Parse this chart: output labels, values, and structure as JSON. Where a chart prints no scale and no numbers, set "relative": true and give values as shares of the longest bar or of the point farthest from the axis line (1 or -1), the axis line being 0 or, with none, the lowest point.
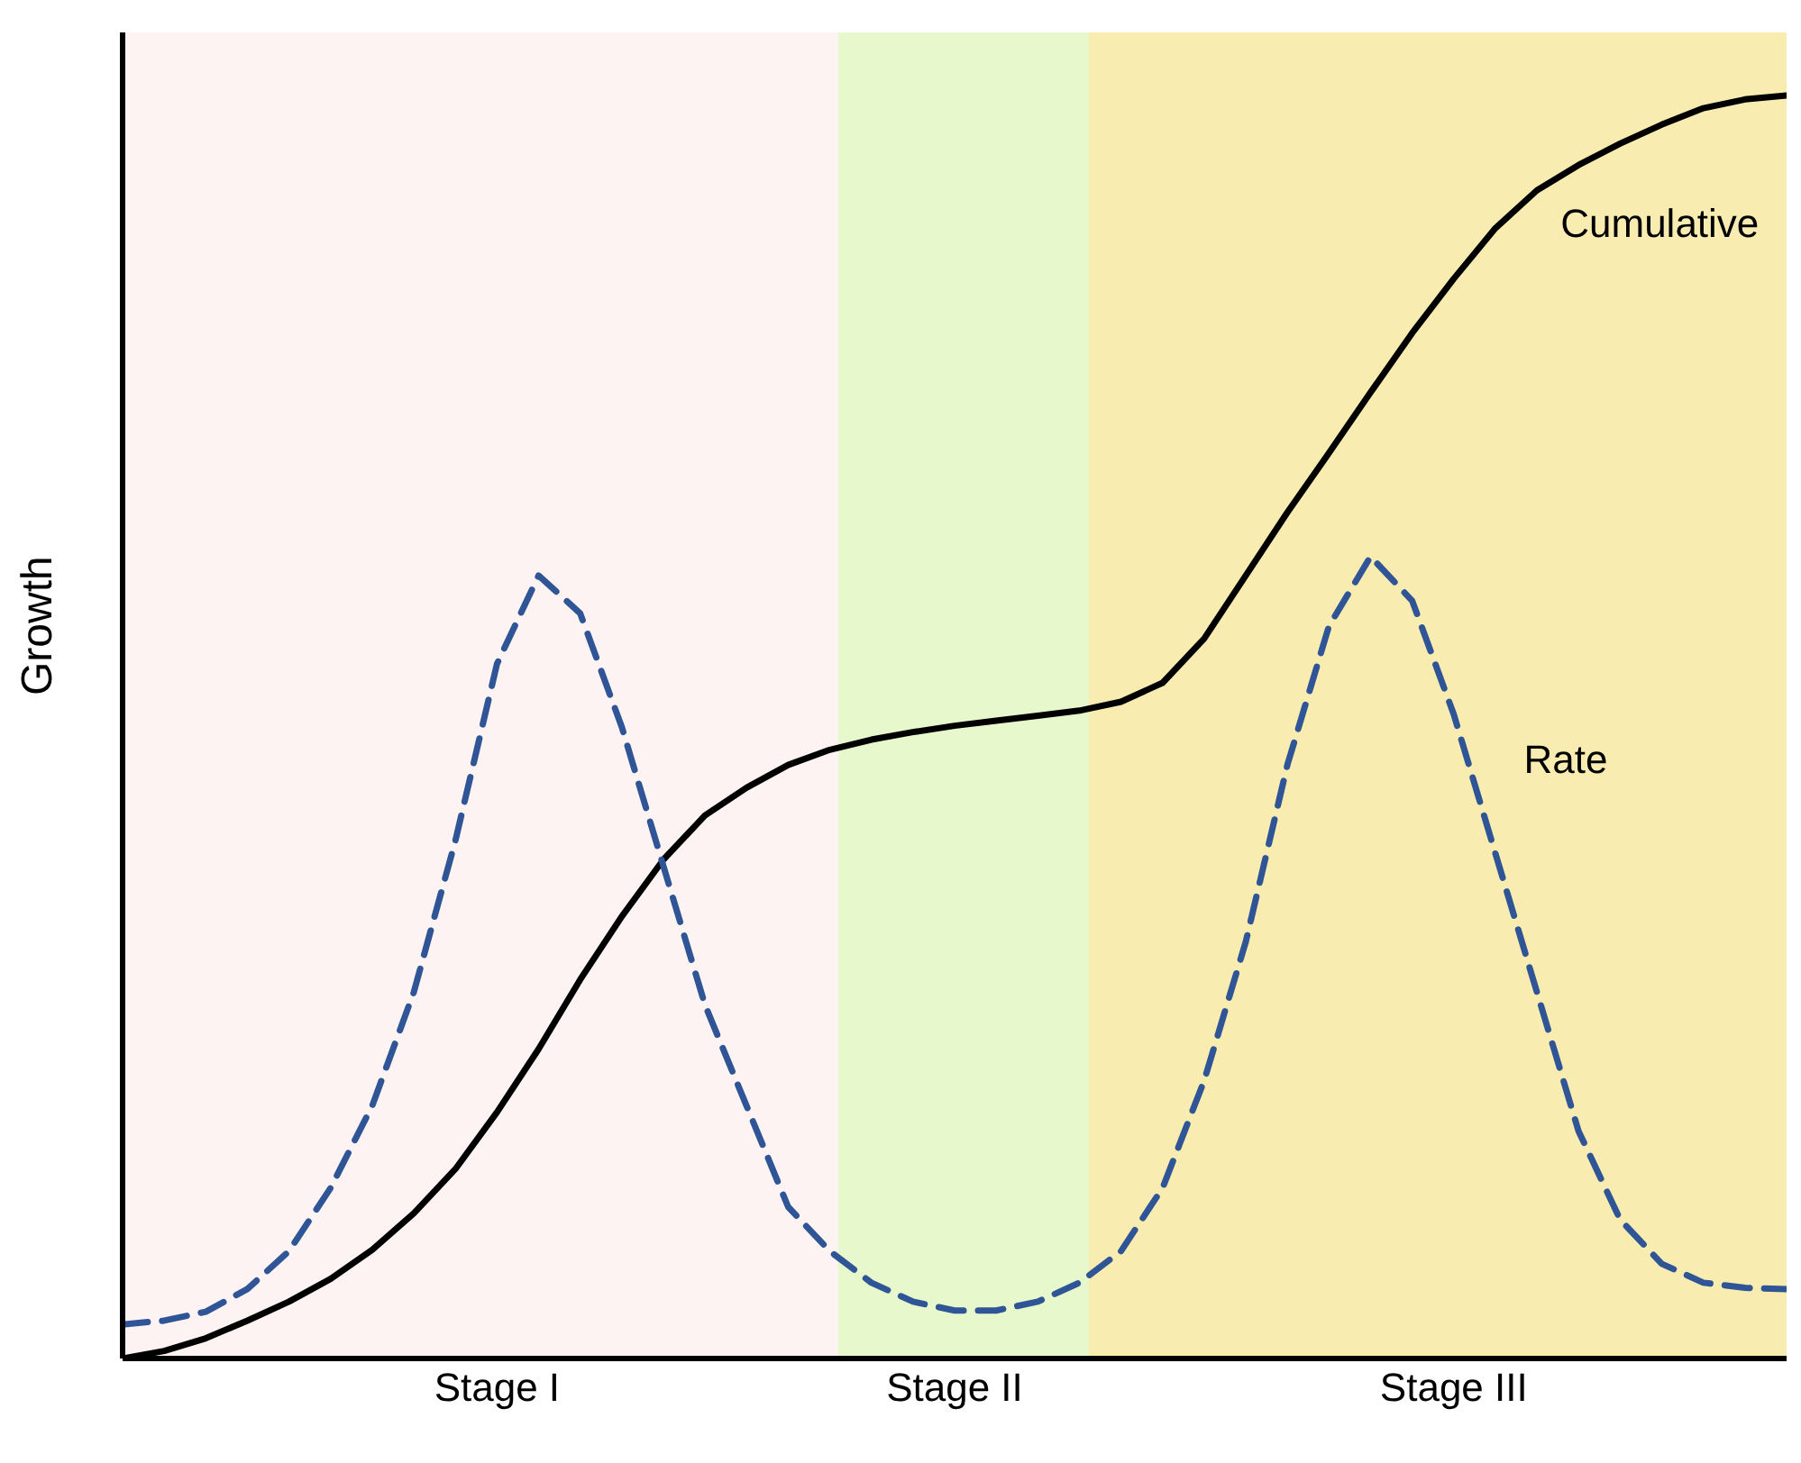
{
  "chart_data": {
    "type": "line",
    "ylabel": "Growth",
    "relative": true,
    "grid": false,
    "legend": false,
    "categories": [
      null,
      null,
      null,
      null,
      null,
      null,
      null,
      null,
      null,
      "Stage I",
      null,
      null,
      null,
      null,
      null,
      null,
      null,
      null,
      null,
      null,
      "Stage II",
      null,
      null,
      null,
      null,
      null,
      null,
      null,
      null,
      null,
      null,
      null,
      "Stage III",
      null,
      null,
      null,
      null,
      null,
      null,
      null,
      null
    ],
    "series": [
      {
        "name": "Cumulative",
        "color": "#000000",
        "line_style": "solid",
        "values": [
          0,
          0.006,
          0.016,
          0.03,
          0.045,
          0.063,
          0.086,
          0.115,
          0.15,
          0.195,
          0.245,
          0.3,
          0.35,
          0.395,
          0.43,
          0.452,
          0.47,
          0.482,
          0.49,
          0.496,
          0.501,
          0.505,
          0.509,
          0.513,
          0.52,
          0.535,
          0.57,
          0.62,
          0.67,
          0.717,
          0.765,
          0.812,
          0.855,
          0.895,
          0.925,
          0.945,
          0.962,
          0.977,
          0.99,
          0.997,
          1.0
        ]
      },
      {
        "name": "Rate",
        "color": "#2f5597",
        "line_style": "dashed",
        "values": [
          0.027,
          0.03,
          0.037,
          0.055,
          0.085,
          0.135,
          0.2,
          0.29,
          0.41,
          0.55,
          0.62,
          0.59,
          0.5,
          0.39,
          0.28,
          0.2,
          0.12,
          0.085,
          0.06,
          0.045,
          0.038,
          0.038,
          0.045,
          0.06,
          0.085,
          0.135,
          0.22,
          0.33,
          0.47,
          0.58,
          0.635,
          0.6,
          0.51,
          0.4,
          0.29,
          0.18,
          0.11,
          0.075,
          0.06,
          0.056,
          0.055
        ]
      }
    ]
  }
}
